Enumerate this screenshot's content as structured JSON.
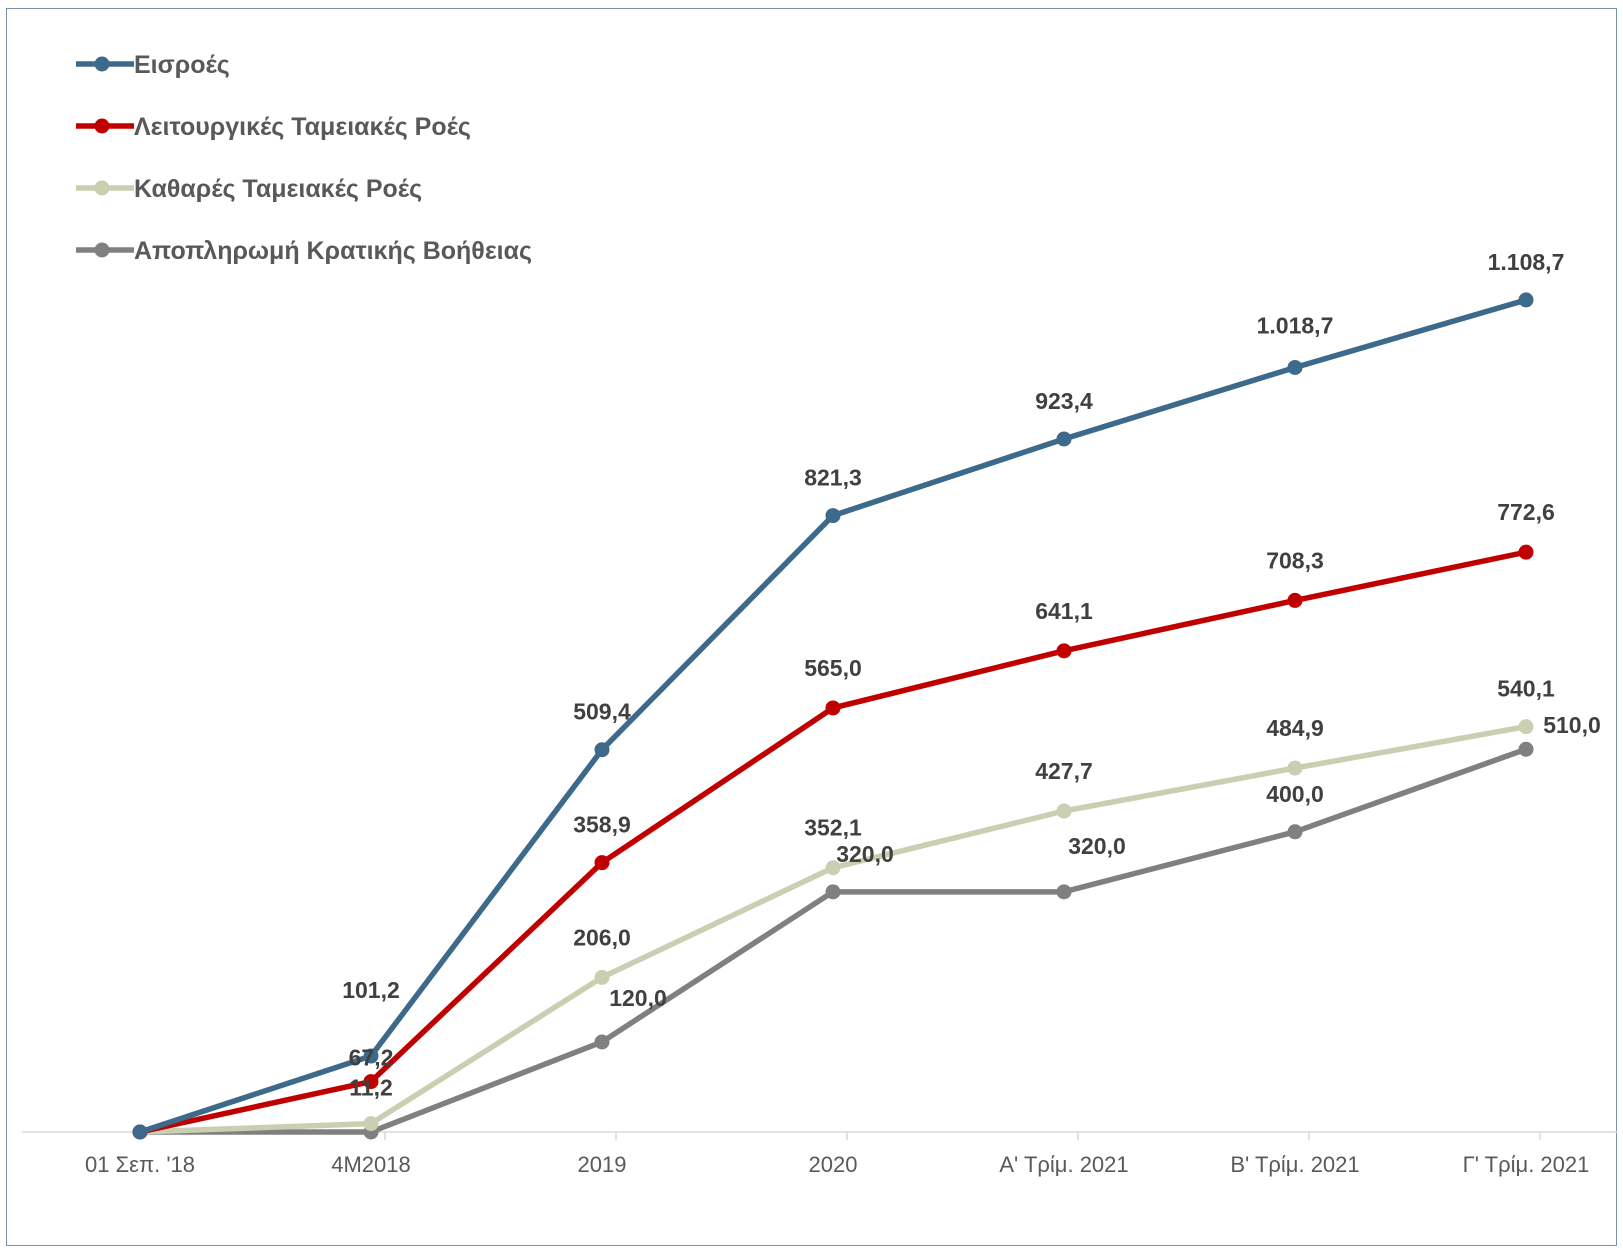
{
  "chart_data": {
    "type": "line",
    "categories": [
      "01 Σεπ. '18",
      "4M2018",
      "2019",
      "2020",
      "Α' Τρίμ. 2021",
      "Β' Τρίμ. 2021",
      "Γ' Τρίμ. 2021"
    ],
    "series": [
      {
        "name": "Εισροές",
        "color": "#3d6a8a",
        "values": [
          0,
          101.2,
          509.4,
          821.3,
          923.4,
          1018.7,
          1108.7
        ],
        "labels": [
          "",
          "101,2",
          "509,4",
          "821,3",
          "923,4",
          "1.018,7",
          "1.108,7"
        ]
      },
      {
        "name": "Λειτουργικές Ταμειακές Ροές",
        "color": "#c00000",
        "values": [
          0,
          67.2,
          358.9,
          565.0,
          641.1,
          708.3,
          772.6
        ],
        "labels": [
          "",
          "67,2",
          "358,9",
          "565,0",
          "641,1",
          "708,3",
          "772,6"
        ]
      },
      {
        "name": "Καθαρές Ταμειακές Ροές",
        "color": "#c9cfb1",
        "values": [
          0,
          11.2,
          206.0,
          352.1,
          427.7,
          484.9,
          540.1
        ],
        "labels": [
          "",
          "11,2",
          "206,0",
          "352,1",
          "427,7",
          "484,9",
          "540,1"
        ]
      },
      {
        "name": "Αποπληρωμή Κρατικής Βοήθειας",
        "color": "#808080",
        "values": [
          0,
          0,
          120.0,
          320.0,
          320.0,
          400.0,
          510.0
        ],
        "labels": [
          "",
          "",
          "120,0",
          "320,0",
          "320,0",
          "400,0",
          "510,0"
        ]
      }
    ],
    "title": "",
    "xlabel": "",
    "ylabel": "",
    "ylim": [
      0,
      1200
    ],
    "grid": false,
    "legend_position": "top-left",
    "axis_color": "#d9d9d9"
  }
}
